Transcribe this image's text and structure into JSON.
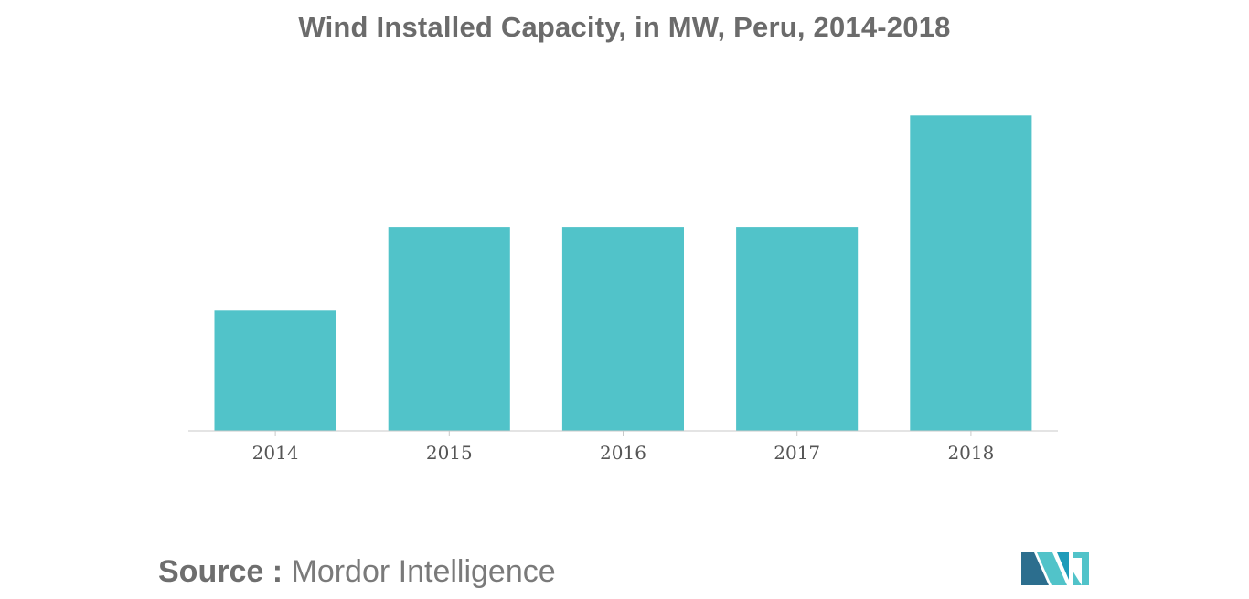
{
  "chart_data": {
    "type": "bar",
    "title": "Wind Installed Capacity, in MW, Peru, 2014-2018",
    "categories": [
      "2014",
      "2015",
      "2016",
      "2017",
      "2018"
    ],
    "values": [
      146,
      247,
      247,
      247,
      382
    ],
    "xlabel": "",
    "ylabel": "",
    "ylim": [
      0,
      420
    ],
    "grid": false,
    "legend": "none",
    "bar_color": "#51c3c9",
    "axis_color": "#c9c9c9"
  },
  "source": {
    "prefix": "Source :",
    "name": "Mordor Intelligence"
  },
  "logo": {
    "icon": "mordor-intelligence-logo-icon",
    "colors": [
      "#2c6e8e",
      "#51c3c9",
      "#1e9bb9"
    ]
  }
}
